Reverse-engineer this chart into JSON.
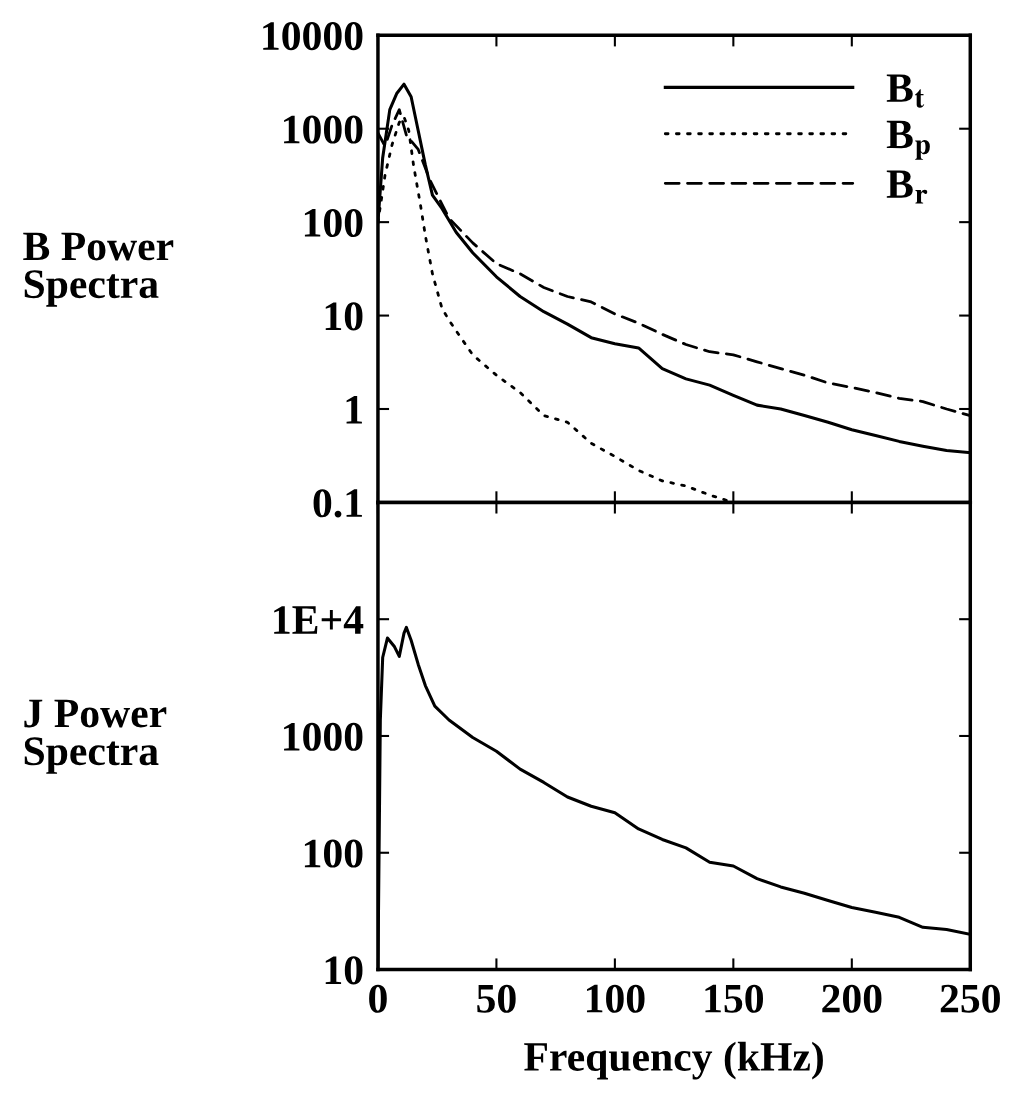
{
  "chart_data": [
    {
      "type": "line",
      "ylabel": "B Power\nSpectra",
      "log": "y",
      "xlim": [
        0,
        250
      ],
      "xticks": [
        0,
        50,
        100,
        150,
        200,
        250
      ],
      "ylim": [
        0.1,
        10000
      ],
      "yticks": [
        0.1,
        1,
        10,
        100,
        1000,
        10000
      ],
      "tick_labels": "y",
      "legend": "top right",
      "grid": false,
      "series": [
        {
          "name": "B$_{t}$",
          "color": "#000000",
          "line_style": "solid",
          "x": [
            0,
            2,
            5,
            8,
            11,
            14,
            17,
            20,
            23,
            27,
            33,
            40,
            50,
            60,
            70,
            80,
            90,
            100,
            110,
            120,
            130,
            140,
            150,
            160,
            170,
            180,
            190,
            200,
            210,
            220,
            230,
            240,
            250
          ],
          "values": [
            100,
            490,
            1600,
            2400,
            3000,
            2200,
            950,
            410,
            195,
            140,
            78,
            47,
            26,
            16,
            11,
            8.1,
            5.8,
            5,
            4.5,
            2.7,
            2.1,
            1.8,
            1.4,
            1.1,
            1.0,
            0.85,
            0.72,
            0.6,
            0.52,
            0.45,
            0.4,
            0.36,
            0.34
          ]
        },
        {
          "name": "B$_{p}$",
          "color": "#000000",
          "line_style": "dotted",
          "x": [
            0,
            3,
            6,
            9,
            11,
            13,
            15,
            18,
            20,
            23,
            27,
            30,
            35,
            40,
            50,
            60,
            70,
            80,
            90,
            100,
            110,
            120,
            130,
            140,
            150,
            157
          ],
          "values": [
            100,
            320,
            680,
            1170,
            1340,
            960,
            410,
            150,
            72,
            28,
            12,
            8.9,
            5.8,
            3.8,
            2.3,
            1.5,
            0.85,
            0.72,
            0.43,
            0.31,
            0.22,
            0.17,
            0.15,
            0.12,
            0.1,
            0.1
          ]
        },
        {
          "name": "B$_{r}$",
          "color": "#000000",
          "line_style": "dashed",
          "x": [
            0,
            3,
            6,
            9,
            12,
            17,
            22,
            30,
            40,
            50,
            60,
            70,
            80,
            90,
            100,
            110,
            120,
            130,
            140,
            150,
            160,
            170,
            180,
            190,
            200,
            210,
            220,
            230,
            240,
            250
          ],
          "values": [
            900,
            650,
            1100,
            1600,
            850,
            600,
            280,
            110,
            60,
            36,
            28,
            20,
            16,
            14,
            10.4,
            8.3,
            6.3,
            4.9,
            4.1,
            3.8,
            3.2,
            2.7,
            2.3,
            1.9,
            1.7,
            1.5,
            1.3,
            1.2,
            1.0,
            0.85
          ]
        }
      ]
    },
    {
      "type": "line",
      "ylabel": "J Power\nSpectra",
      "xlabel": "Frequency (kHz)",
      "log": "y",
      "xlim": [
        0,
        250
      ],
      "xticks": [
        0,
        50,
        100,
        150,
        200,
        250
      ],
      "ylim": [
        10,
        100000
      ],
      "yticks": [
        10,
        100,
        1000,
        {
          "value": 10000,
          "label": "1E+4"
        }
      ],
      "grid": false,
      "series": [
        {
          "color": "#000000",
          "line_style": "solid",
          "x": [
            0,
            1,
            2,
            4,
            7,
            9,
            11,
            12,
            14,
            17,
            20,
            24,
            30,
            40,
            50,
            60,
            70,
            80,
            90,
            100,
            110,
            120,
            130,
            140,
            150,
            160,
            170,
            180,
            190,
            200,
            210,
            220,
            230,
            240,
            250
          ],
          "values": [
            10,
            1370,
            4700,
            6900,
            5800,
            4800,
            7600,
            8500,
            6600,
            4100,
            2700,
            1800,
            1370,
            970,
            740,
            520,
            400,
            300,
            250,
            220,
            160,
            130,
            110,
            83,
            77,
            60,
            51,
            45,
            39,
            34,
            31,
            28,
            23,
            22,
            20
          ]
        }
      ]
    }
  ]
}
